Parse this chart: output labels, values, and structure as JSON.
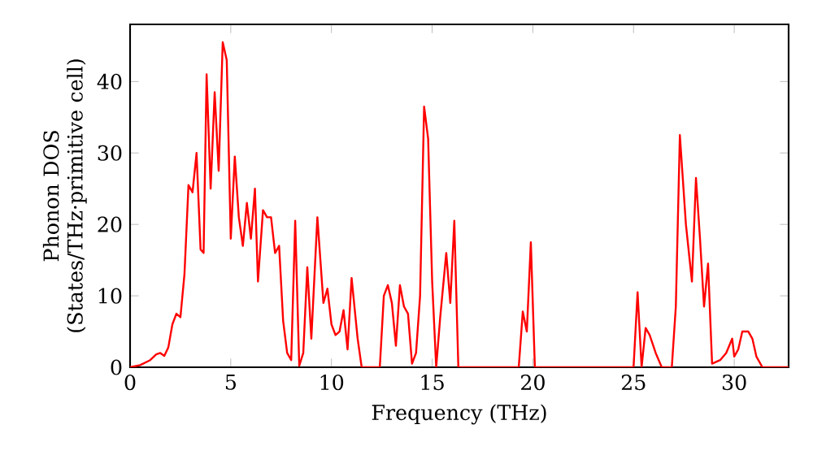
{
  "chart_data": {
    "type": "line",
    "xlabel": "Frequency (THz)",
    "ylabel": "Phonon DOS (States/THz·primitive cell)",
    "xlim": [
      0,
      32.7
    ],
    "ylim": [
      0,
      48
    ],
    "xticks": [
      0,
      5,
      10,
      15,
      20,
      25,
      30
    ],
    "yticks": [
      0,
      10,
      20,
      30,
      40
    ],
    "series": [
      {
        "color": "#ff0000",
        "x": [
          0,
          0.5,
          1,
          1.3,
          1.5,
          1.7,
          1.9,
          2.1,
          2.3,
          2.5,
          2.7,
          2.9,
          3.1,
          3.3,
          3.5,
          3.65,
          3.8,
          4.0,
          4.2,
          4.4,
          4.6,
          4.8,
          5.0,
          5.2,
          5.4,
          5.6,
          5.8,
          6.0,
          6.2,
          6.35,
          6.6,
          6.8,
          7.0,
          7.2,
          7.4,
          7.6,
          7.8,
          8.0,
          8.2,
          8.4,
          8.6,
          8.8,
          9.0,
          9.3,
          9.6,
          9.8,
          10.0,
          10.2,
          10.4,
          10.6,
          10.8,
          11.0,
          11.3,
          11.5,
          12.4,
          12.6,
          12.8,
          13.0,
          13.2,
          13.4,
          13.6,
          13.8,
          14.0,
          14.2,
          14.4,
          14.6,
          14.8,
          15.0,
          15.2,
          15.4,
          15.7,
          15.9,
          16.1,
          16.3,
          19.3,
          19.5,
          19.7,
          19.9,
          20.1,
          25.0,
          25.2,
          25.4,
          25.6,
          25.8,
          26.1,
          26.4,
          26.9,
          27.1,
          27.3,
          27.6,
          27.9,
          28.1,
          28.3,
          28.5,
          28.7,
          28.9,
          29.3,
          29.6,
          29.9,
          30.0,
          30.2,
          30.4,
          30.7,
          30.9,
          31.1,
          31.4,
          32.7
        ],
        "values": [
          0,
          0.3,
          1,
          1.8,
          2,
          1.6,
          2.8,
          6,
          7.5,
          7,
          13,
          25.5,
          24.5,
          30,
          16.5,
          16,
          41,
          25,
          38.5,
          27.5,
          45.5,
          43,
          18,
          29.5,
          21,
          17,
          23,
          18,
          25,
          12,
          22,
          21,
          21,
          16,
          17,
          6.5,
          2,
          1,
          20.5,
          0.2,
          2,
          14,
          4,
          21,
          9,
          11,
          6,
          4.5,
          5,
          8,
          2.5,
          12.5,
          4,
          0,
          0,
          10,
          11.5,
          9,
          3,
          11.5,
          8.5,
          7.5,
          0.5,
          2,
          10,
          36.5,
          32,
          12,
          0,
          7,
          16,
          9,
          20.5,
          0,
          0,
          7.8,
          5,
          17.5,
          0,
          0,
          10.5,
          0,
          5.5,
          4.5,
          2,
          0,
          0,
          8.5,
          32.5,
          20,
          12,
          26.5,
          18,
          8.5,
          14.5,
          0.5,
          1,
          2,
          4,
          1.5,
          2.5,
          5,
          5,
          4,
          1.5,
          0,
          0
        ]
      }
    ]
  }
}
